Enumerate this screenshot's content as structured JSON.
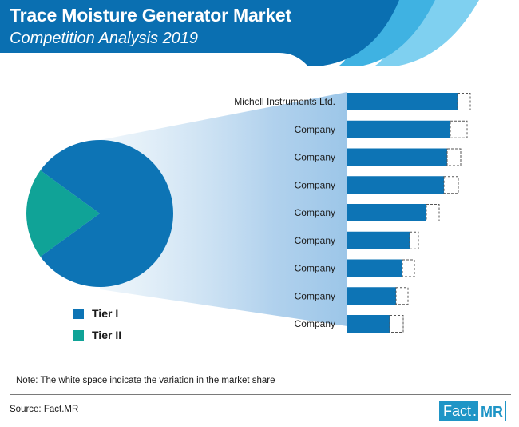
{
  "header": {
    "title": "Trace Moisture Generator Market",
    "subtitle": "Competition Analysis 2019",
    "colors": {
      "band": "#0a6fb1",
      "wave_dark": "#1a8ccc",
      "wave_mid": "#3fb2e2",
      "wave_light": "#7fd0f0"
    }
  },
  "chart_data": [
    {
      "type": "pie",
      "slices": [
        {
          "name": "Tier I",
          "value": 80,
          "color": "#0d74b5"
        },
        {
          "name": "Tier II",
          "value": 20,
          "color": "#10a397"
        }
      ],
      "legend": "bottom-left"
    },
    {
      "type": "bar",
      "orientation": "horizontal",
      "categories": [
        "Michell Instruments Ltd.",
        "Company",
        "Company",
        "Company",
        "Company",
        "Company",
        "Company",
        "Company",
        "Company"
      ],
      "values": [
        138,
        129,
        125,
        121,
        99,
        78,
        69,
        61,
        53
      ],
      "variation": [
        16,
        21,
        17,
        18,
        16,
        11,
        15,
        15,
        17
      ],
      "color": "#0d74b5",
      "variation_style": "dashed outline"
    }
  ],
  "legend": {
    "tier1_label": "Tier I",
    "tier2_label": "Tier II"
  },
  "footer": {
    "note": "Note: The white space indicate the variation in the market share",
    "source": "Source: Fact.MR",
    "logo_left": "Fact",
    "logo_dot": ".",
    "logo_right": "MR"
  }
}
